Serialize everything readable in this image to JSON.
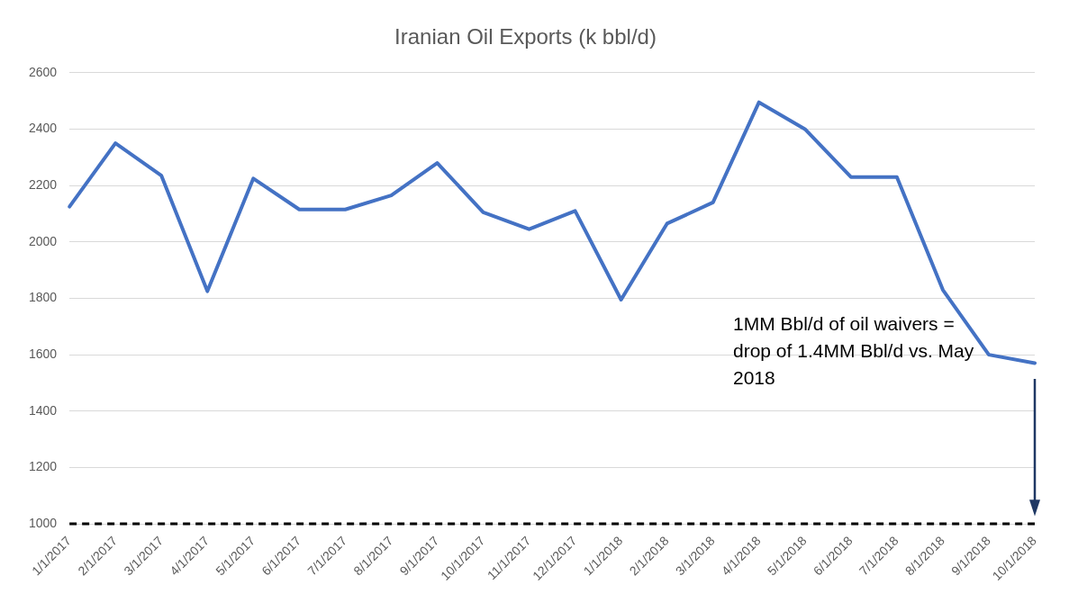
{
  "chart_data": {
    "type": "line",
    "title": "Iranian Oil Exports (k bbl/d)",
    "categories": [
      "1/1/2017",
      "2/1/2017",
      "3/1/2017",
      "4/1/2017",
      "5/1/2017",
      "6/1/2017",
      "7/1/2017",
      "8/1/2017",
      "9/1/2017",
      "10/1/2017",
      "11/1/2017",
      "12/1/2017",
      "1/1/2018",
      "2/1/2018",
      "3/1/2018",
      "4/1/2018",
      "5/1/2018",
      "6/1/2018",
      "7/1/2018",
      "8/1/2018",
      "9/1/2018",
      "10/1/2018"
    ],
    "series": [
      {
        "color": "#4472c4",
        "values": [
          2125,
          2350,
          2235,
          1825,
          2225,
          2115,
          2115,
          2165,
          2280,
          2105,
          2045,
          2110,
          1795,
          2065,
          2140,
          2495,
          2400,
          2230,
          2230,
          1830,
          1600,
          1570
        ]
      }
    ],
    "ylim": [
      1000,
      2600
    ],
    "yticks": [
      1000,
      1200,
      1400,
      1600,
      1800,
      2000,
      2200,
      2400,
      2600
    ],
    "grid": "y",
    "legend": false,
    "marker": "none",
    "line_style": "solid",
    "ref_lines": [
      {
        "axis": "y",
        "value": 1000,
        "color": "#000000",
        "line_style": "dashed"
      }
    ],
    "annotations": [
      "1MM Bbl/d of oil waivers = drop of 1.4MM Bbl/d vs. May 2018"
    ]
  }
}
